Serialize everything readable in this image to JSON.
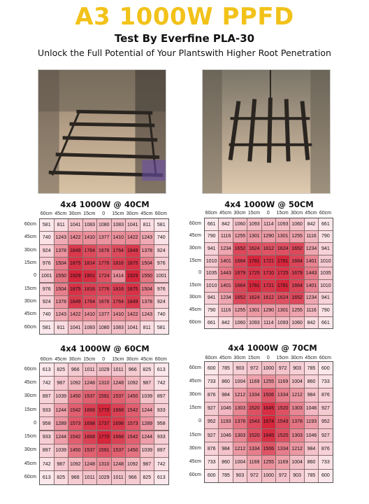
{
  "header": {
    "title": "A3 1000W PPFD",
    "subtitle": "Test By Everfine PLA-30",
    "tagline": "Unlock the Full Potential of Your Plantswith Higher Root Penetration"
  },
  "photos": [
    {
      "name": "photo-tent-left",
      "description": "grow tent with light bars"
    },
    {
      "name": "photo-tent-right",
      "description": "grow tent with light bars"
    }
  ],
  "colors": {
    "title": "#f2c21a",
    "low": "#fbe6ea",
    "high": "#d7283d"
  },
  "grids": [
    {
      "title": "4x4 1000W @ 40CM",
      "cols": [
        "60cm",
        "45cm",
        "30cm",
        "15cm",
        "0",
        "15cm",
        "30cm",
        "45cm",
        "60cm"
      ],
      "rows": [
        "60cm",
        "45cm",
        "30cm",
        "15cm",
        "0",
        "15cm",
        "30cm",
        "45cm",
        "60cm"
      ],
      "values": [
        [
          581,
          811,
          1041,
          1083,
          1080,
          1083,
          1041,
          811,
          581
        ],
        [
          740,
          1243,
          1422,
          1410,
          1377,
          1410,
          1422,
          1243,
          740
        ],
        [
          924,
          1378,
          1849,
          1764,
          1676,
          1764,
          1849,
          1378,
          924
        ],
        [
          976,
          1504,
          1875,
          1814,
          1776,
          1816,
          1875,
          1504,
          976
        ],
        [
          1001,
          1550,
          1929,
          1901,
          1724,
          1414,
          1929,
          1550,
          1001
        ],
        [
          976,
          1504,
          1875,
          1816,
          1776,
          1816,
          1875,
          1504,
          976
        ],
        [
          924,
          1378,
          1849,
          1764,
          1676,
          1764,
          1849,
          1378,
          924
        ],
        [
          740,
          1243,
          1422,
          1410,
          1377,
          1410,
          1422,
          1243,
          740
        ],
        [
          581,
          811,
          1041,
          1083,
          1080,
          1083,
          1041,
          811,
          581
        ]
      ]
    },
    {
      "title": "4x4 1000W @ 50CM",
      "cols": [
        "60cm",
        "45cm",
        "30cm",
        "15cm",
        "0",
        "15cm",
        "30cm",
        "45cm",
        "60cm"
      ],
      "rows": [
        "60cm",
        "45cm",
        "30cm",
        "15cm",
        "0",
        "15cm",
        "30cm",
        "45cm",
        "60cm"
      ],
      "values": [
        [
          661,
          842,
          1060,
          1093,
          1114,
          1093,
          1060,
          842,
          661
        ],
        [
          790,
          1116,
          1255,
          1301,
          1290,
          1301,
          1255,
          1116,
          790
        ],
        [
          941,
          1234,
          1652,
          1624,
          1612,
          1624,
          1652,
          1234,
          941
        ],
        [
          1010,
          1401,
          1664,
          1781,
          1721,
          1781,
          1664,
          1401,
          1010
        ],
        [
          1035,
          1443,
          1679,
          1725,
          1710,
          1725,
          1679,
          1443,
          1035
        ],
        [
          1010,
          1401,
          1664,
          1781,
          1721,
          1781,
          1664,
          1401,
          1010
        ],
        [
          941,
          1234,
          1652,
          1624,
          1612,
          1624,
          1652,
          1234,
          941
        ],
        [
          790,
          1116,
          1255,
          1301,
          1290,
          1301,
          1255,
          1116,
          790
        ],
        [
          661,
          842,
          1060,
          1093,
          1114,
          1093,
          1060,
          842,
          661
        ]
      ]
    },
    {
      "title": "4x4 1000W @ 60CM",
      "cols": [
        "60cm",
        "45cm",
        "30cm",
        "15cm",
        "0",
        "15cm",
        "30cm",
        "45cm",
        "60cm"
      ],
      "rows": [
        "60cm",
        "45cm",
        "30cm",
        "15cm",
        "0",
        "15cm",
        "30cm",
        "45cm",
        "60cm"
      ],
      "values": [
        [
          613,
          825,
          966,
          1011,
          1029,
          1011,
          966,
          825,
          613
        ],
        [
          742,
          987,
          1092,
          1248,
          1310,
          1248,
          1092,
          987,
          742
        ],
        [
          897,
          1039,
          1450,
          1537,
          1591,
          1537,
          1450,
          1039,
          897
        ],
        [
          933,
          1244,
          1542,
          1668,
          1770,
          1668,
          1542,
          1244,
          933
        ],
        [
          958,
          1289,
          1573,
          1698,
          1737,
          1698,
          1573,
          1289,
          958
        ],
        [
          933,
          1244,
          1542,
          1668,
          1770,
          1668,
          1542,
          1244,
          933
        ],
        [
          897,
          1039,
          1450,
          1537,
          1591,
          1537,
          1450,
          1039,
          897
        ],
        [
          742,
          987,
          1092,
          1248,
          1310,
          1248,
          1092,
          987,
          742
        ],
        [
          613,
          825,
          966,
          1011,
          1029,
          1011,
          966,
          825,
          613
        ]
      ]
    },
    {
      "title": "4x4 1000W @ 70CM",
      "cols": [
        "60cm",
        "45cm",
        "30cm",
        "15cm",
        "0",
        "15cm",
        "30cm",
        "45cm",
        "60cm"
      ],
      "rows": [
        "60cm",
        "45cm",
        "30cm",
        "15cm",
        "0",
        "15cm",
        "30cm",
        "45cm",
        "60cm"
      ],
      "values": [
        [
          600,
          785,
          903,
          972,
          1000,
          972,
          903,
          785,
          600
        ],
        [
          733,
          860,
          1004,
          1169,
          1255,
          1169,
          1004,
          860,
          733
        ],
        [
          876,
          984,
          1212,
          1334,
          1506,
          1334,
          1212,
          984,
          876
        ],
        [
          927,
          1046,
          1303,
          1520,
          1645,
          1520,
          1303,
          1046,
          927
        ],
        [
          952,
          1193,
          1378,
          1543,
          1674,
          1543,
          1378,
          1193,
          952
        ],
        [
          927,
          1046,
          1303,
          1520,
          1645,
          1520,
          1303,
          1046,
          927
        ],
        [
          876,
          984,
          1212,
          1334,
          1506,
          1334,
          1212,
          984,
          876
        ],
        [
          733,
          860,
          1004,
          1169,
          1255,
          1169,
          1004,
          860,
          733
        ],
        [
          600,
          785,
          903,
          972,
          1000,
          972,
          903,
          785,
          600
        ]
      ]
    }
  ]
}
